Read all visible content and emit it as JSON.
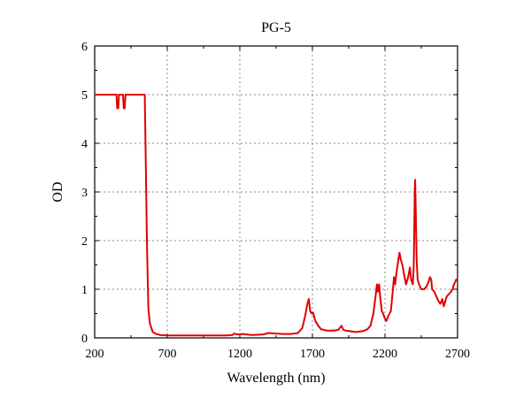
{
  "chart_data": {
    "type": "line",
    "title": "PG-5",
    "xlabel": "Wavelength (nm)",
    "ylabel": "OD",
    "xlim": [
      200,
      2700
    ],
    "ylim": [
      0,
      6
    ],
    "xticks": [
      200,
      700,
      1200,
      1700,
      2200,
      2700
    ],
    "yticks": [
      0,
      1,
      2,
      3,
      4,
      5,
      6
    ],
    "grid": true,
    "grid_style": "dotted",
    "series": [
      {
        "color": "#e00000",
        "points": [
          [
            200,
            5.0
          ],
          [
            350,
            5.0
          ],
          [
            355,
            4.72
          ],
          [
            362,
            4.72
          ],
          [
            367,
            5.0
          ],
          [
            395,
            5.0
          ],
          [
            400,
            4.72
          ],
          [
            407,
            4.72
          ],
          [
            412,
            5.0
          ],
          [
            545,
            5.0
          ],
          [
            550,
            4.0
          ],
          [
            555,
            3.0
          ],
          [
            560,
            2.0
          ],
          [
            565,
            1.2
          ],
          [
            570,
            0.6
          ],
          [
            580,
            0.3
          ],
          [
            600,
            0.12
          ],
          [
            625,
            0.08
          ],
          [
            650,
            0.06
          ],
          [
            700,
            0.05
          ],
          [
            800,
            0.05
          ],
          [
            900,
            0.05
          ],
          [
            1000,
            0.05
          ],
          [
            1100,
            0.05
          ],
          [
            1150,
            0.06
          ],
          [
            1160,
            0.09
          ],
          [
            1180,
            0.07
          ],
          [
            1220,
            0.08
          ],
          [
            1280,
            0.06
          ],
          [
            1360,
            0.07
          ],
          [
            1400,
            0.1
          ],
          [
            1450,
            0.09
          ],
          [
            1500,
            0.08
          ],
          [
            1550,
            0.08
          ],
          [
            1600,
            0.1
          ],
          [
            1630,
            0.2
          ],
          [
            1650,
            0.45
          ],
          [
            1665,
            0.7
          ],
          [
            1675,
            0.8
          ],
          [
            1685,
            0.55
          ],
          [
            1695,
            0.5
          ],
          [
            1705,
            0.52
          ],
          [
            1720,
            0.35
          ],
          [
            1740,
            0.25
          ],
          [
            1760,
            0.18
          ],
          [
            1800,
            0.15
          ],
          [
            1850,
            0.15
          ],
          [
            1880,
            0.17
          ],
          [
            1900,
            0.25
          ],
          [
            1915,
            0.16
          ],
          [
            1950,
            0.14
          ],
          [
            2000,
            0.12
          ],
          [
            2050,
            0.14
          ],
          [
            2080,
            0.18
          ],
          [
            2100,
            0.25
          ],
          [
            2120,
            0.5
          ],
          [
            2135,
            0.85
          ],
          [
            2145,
            1.1
          ],
          [
            2150,
            0.95
          ],
          [
            2160,
            1.1
          ],
          [
            2168,
            0.8
          ],
          [
            2178,
            0.55
          ],
          [
            2188,
            0.5
          ],
          [
            2198,
            0.4
          ],
          [
            2210,
            0.35
          ],
          [
            2222,
            0.45
          ],
          [
            2240,
            0.55
          ],
          [
            2252,
            0.9
          ],
          [
            2262,
            1.25
          ],
          [
            2270,
            1.1
          ],
          [
            2280,
            1.35
          ],
          [
            2292,
            1.6
          ],
          [
            2300,
            1.75
          ],
          [
            2310,
            1.6
          ],
          [
            2320,
            1.5
          ],
          [
            2332,
            1.3
          ],
          [
            2345,
            1.1
          ],
          [
            2360,
            1.25
          ],
          [
            2372,
            1.45
          ],
          [
            2380,
            1.2
          ],
          [
            2392,
            1.1
          ],
          [
            2398,
            1.5
          ],
          [
            2402,
            2.2
          ],
          [
            2405,
            3.0
          ],
          [
            2408,
            3.25
          ],
          [
            2412,
            2.6
          ],
          [
            2418,
            1.6
          ],
          [
            2425,
            1.2
          ],
          [
            2435,
            1.1
          ],
          [
            2450,
            1.0
          ],
          [
            2470,
            1.0
          ],
          [
            2485,
            1.05
          ],
          [
            2500,
            1.15
          ],
          [
            2510,
            1.25
          ],
          [
            2518,
            1.2
          ],
          [
            2525,
            1.0
          ],
          [
            2540,
            0.95
          ],
          [
            2555,
            0.85
          ],
          [
            2570,
            0.75
          ],
          [
            2582,
            0.7
          ],
          [
            2595,
            0.8
          ],
          [
            2605,
            0.65
          ],
          [
            2615,
            0.75
          ],
          [
            2625,
            0.85
          ],
          [
            2640,
            0.9
          ],
          [
            2655,
            0.95
          ],
          [
            2665,
            1.0
          ],
          [
            2675,
            1.1
          ],
          [
            2685,
            1.15
          ],
          [
            2690,
            1.2
          ],
          [
            2700,
            1.2
          ]
        ]
      }
    ]
  }
}
